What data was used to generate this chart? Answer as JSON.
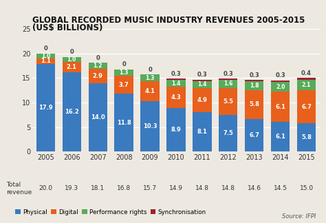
{
  "title_line1": "GLOBAL RECORDED MUSIC INDUSTRY REVENUES 2005-2015",
  "title_line2": "(US$ BILLIONS)",
  "years": [
    "2005",
    "2006",
    "2007",
    "2008",
    "2009",
    "2010",
    "2011",
    "2012",
    "2013",
    "2014",
    "2015"
  ],
  "physical": [
    17.9,
    16.2,
    14.0,
    11.8,
    10.3,
    8.9,
    8.1,
    7.5,
    6.7,
    6.1,
    5.8
  ],
  "digital": [
    1.1,
    2.1,
    2.9,
    3.7,
    4.1,
    4.3,
    4.9,
    5.5,
    5.8,
    6.1,
    6.7
  ],
  "performance": [
    1.0,
    1.0,
    1.2,
    1.3,
    1.3,
    1.4,
    1.4,
    1.6,
    1.8,
    2.0,
    2.1
  ],
  "synch": [
    0.0,
    0.0,
    0.0,
    0.0,
    0.0,
    0.3,
    0.3,
    0.3,
    0.3,
    0.3,
    0.4
  ],
  "total_revenue": [
    20.0,
    19.3,
    18.1,
    16.8,
    15.7,
    14.9,
    14.8,
    14.8,
    14.6,
    14.5,
    15.0
  ],
  "synch_labels": [
    "0",
    "0",
    "0",
    "0",
    "0",
    "0.3",
    "0.3",
    "0.3",
    "0.3",
    "0.3",
    "0.4"
  ],
  "colors": {
    "physical": "#3a7abf",
    "digital": "#e8601c",
    "performance": "#5aaa5a",
    "synch": "#a02030"
  },
  "ylim": [
    0,
    25
  ],
  "yticks": [
    0,
    5,
    10,
    15,
    20,
    25
  ],
  "background_color": "#ede9e1",
  "title_fontsize": 8.5,
  "source_text": "Source: IFPI",
  "bar_width": 0.72
}
